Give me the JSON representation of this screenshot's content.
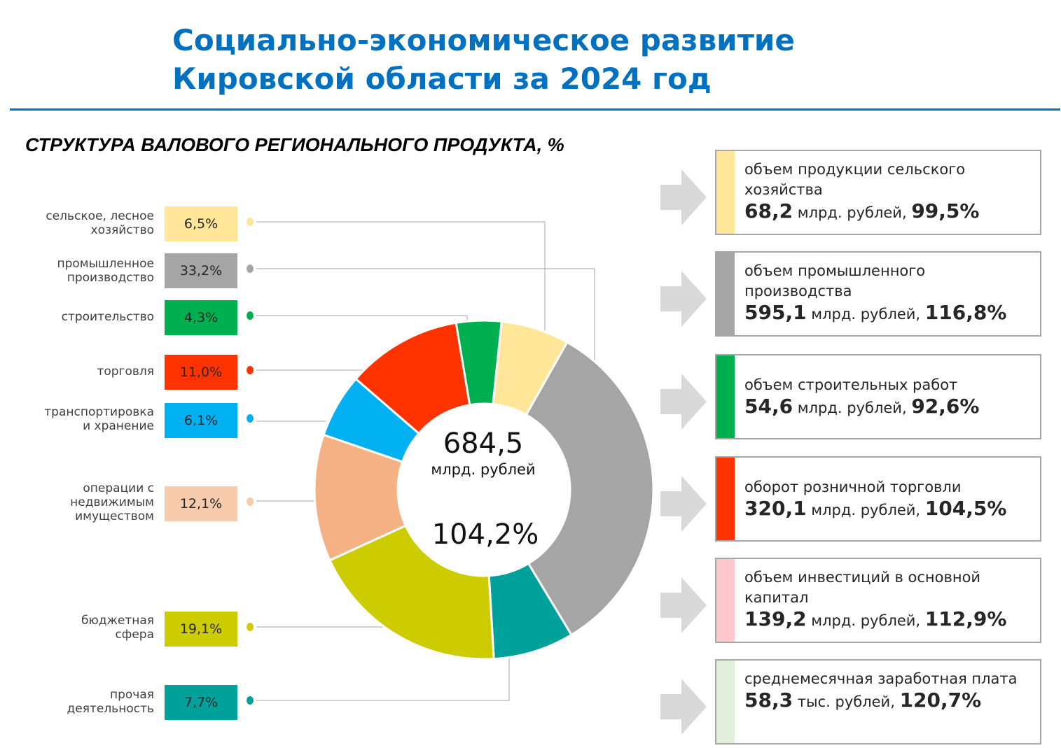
{
  "header": {
    "title_line1": "Социально-экономическое развитие",
    "title_line2": "Кировской области за 2024 год"
  },
  "chart_data": {
    "type": "pie",
    "title": "СТРУКТУРА ВАЛОВОГО РЕГИОНАЛЬНОГО ПРОДУКТА, %",
    "unit": "%",
    "center_value": "684,5",
    "center_unit": "млрд. рублей",
    "center_growth": "104,2%",
    "slices": [
      {
        "label": "сельское, лесное хозяйство",
        "label_lines": [
          "сельское, лесное",
          "хозяйство"
        ],
        "value": 6.5,
        "display": "6,5%",
        "color": "#FFE699"
      },
      {
        "label": "промышленное производство",
        "label_lines": [
          "промышленное",
          "производство"
        ],
        "value": 33.2,
        "display": "33,2%",
        "color": "#A5A5A5"
      },
      {
        "label": "прочая деятельность",
        "label_lines": [
          "прочая",
          "деятельность"
        ],
        "value": 7.7,
        "display": "7,7%",
        "color": "#00A19A"
      },
      {
        "label": "бюджетная сфера",
        "label_lines": [
          "бюджетная",
          "сфера"
        ],
        "value": 19.1,
        "display": "19,1%",
        "color": "#CCCC00"
      },
      {
        "label": "операции с недвижимым имуществом",
        "label_lines": [
          "операции с",
          "недвижимым",
          "имуществом"
        ],
        "value": 12.1,
        "display": "12,1%",
        "color": "#F4B183"
      },
      {
        "label": "транспортировка и хранение",
        "label_lines": [
          "транспортировка",
          "и хранение"
        ],
        "value": 6.1,
        "display": "6,1%",
        "color": "#00B0F0"
      },
      {
        "label": "торговля",
        "label_lines": [
          "торговля"
        ],
        "value": 11.0,
        "display": "11,0%",
        "color": "#FF3300"
      },
      {
        "label": "строительство",
        "label_lines": [
          "строительство"
        ],
        "value": 4.3,
        "display": "4,3%",
        "color": "#00B050"
      }
    ]
  },
  "legend": [
    {
      "slice": 0,
      "pct_box_color": "#FFE699",
      "dot_color": "#FFE699"
    },
    {
      "slice": 1,
      "pct_box_color": "#A5A5A5",
      "dot_color": "#A5A5A5"
    },
    {
      "slice": 7,
      "pct_box_color": "#00B050",
      "dot_color": "#00B050"
    },
    {
      "slice": 6,
      "pct_box_color": "#FF3300",
      "dot_color": "#FF3300"
    },
    {
      "slice": 5,
      "pct_box_color": "#00B0F0",
      "dot_color": "#00B0F0"
    },
    {
      "slice": 4,
      "pct_box_color": "#F8CBAD",
      "dot_color": "#F8CBAD"
    },
    {
      "slice": 3,
      "pct_box_color": "#CCCC00",
      "dot_color": "#CCCC00"
    },
    {
      "slice": 2,
      "pct_box_color": "#00A19A",
      "dot_color": "#00A19A"
    }
  ],
  "indicators": [
    {
      "label": "объем продукции сельского хозяйства",
      "value": "68,2",
      "unit": "млрд. рублей,",
      "growth": "99,5%",
      "color": "#FFE699"
    },
    {
      "label": "объем промышленного производства",
      "value": "595,1",
      "unit": "млрд. рублей,",
      "growth": "116,8%",
      "color": "#A5A5A5"
    },
    {
      "label": "объем строительных работ",
      "value": "54,6",
      "unit": "млрд. рублей,",
      "growth": "92,6%",
      "color": "#00B050"
    },
    {
      "label": "оборот розничной торговли",
      "value": "320,1",
      "unit": "млрд. рублей,",
      "growth": "104,5%",
      "color": "#FF3300"
    },
    {
      "label": "объем инвестиций в основной капитал",
      "value": "139,2",
      "unit": "млрд. рублей,",
      "growth": "112,9%",
      "color": "#FFC7CE"
    },
    {
      "label": "среднемесячная заработная плата",
      "value": "58,3",
      "unit": "тыс. рублей,",
      "growth": "120,7%",
      "color": "#E2EFDA"
    }
  ]
}
